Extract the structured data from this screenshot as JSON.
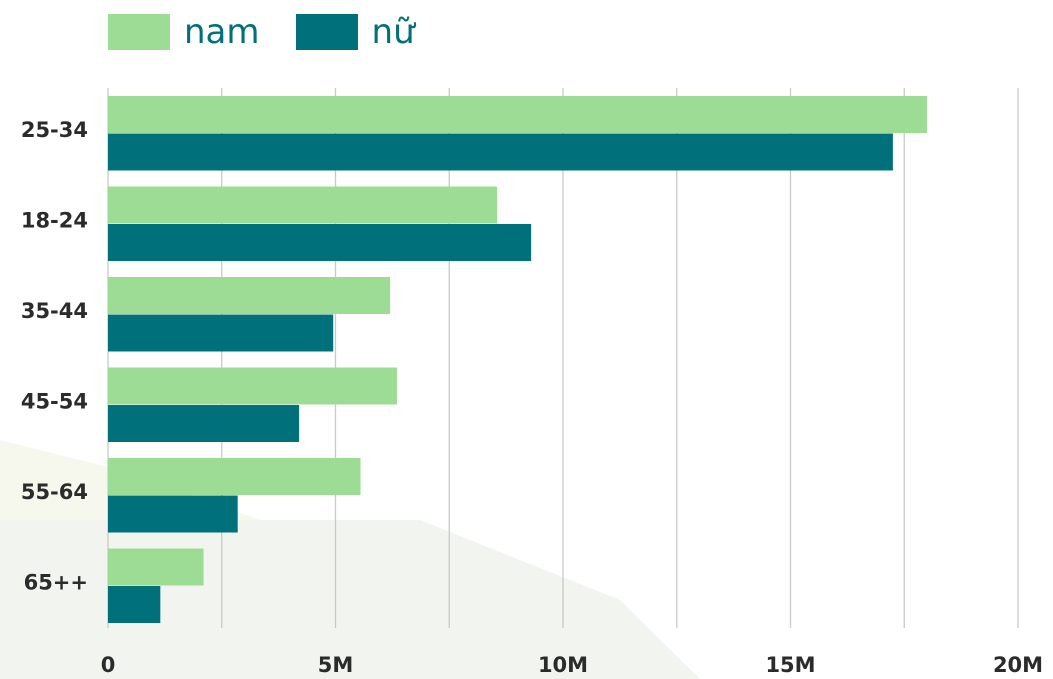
{
  "chart_data": {
    "type": "bar",
    "orientation": "horizontal",
    "categories": [
      "25-34",
      "18-24",
      "35-44",
      "45-54",
      "55-64",
      "65++"
    ],
    "series": [
      {
        "name": "nam",
        "color": "#9ddc94",
        "values": [
          18.0,
          8.55,
          6.2,
          6.35,
          5.55,
          2.1
        ]
      },
      {
        "name": "nữ",
        "color": "#00707a",
        "values": [
          17.25,
          9.3,
          4.95,
          4.2,
          2.85,
          1.15
        ]
      }
    ],
    "xlim": [
      0,
      20
    ],
    "xticks": [
      0,
      2.5,
      5,
      7.5,
      10,
      12.5,
      15,
      17.5,
      20
    ],
    "xtick_labels": [
      "0",
      "5M",
      "10M",
      "15M",
      "20M"
    ],
    "xtick_label_values": [
      0,
      5,
      10,
      15,
      20
    ],
    "grid": "vertical",
    "legend_position": "top-left",
    "title": "",
    "xlabel": "",
    "ylabel": ""
  }
}
